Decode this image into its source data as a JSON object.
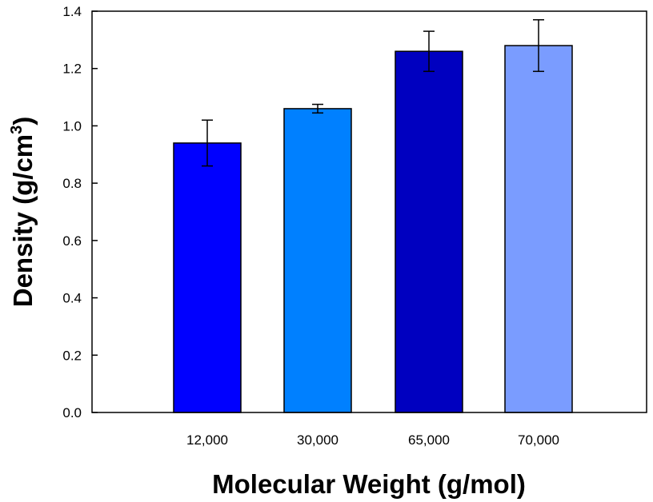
{
  "chart_data": {
    "type": "bar",
    "title": "",
    "xlabel": "Molecular Weight (g/mol)",
    "ylabel": {
      "text": "Density (g/cm",
      "superscript": "3",
      "suffix": ")"
    },
    "categories": [
      "12,000",
      "30,000",
      "65,000",
      "70,000"
    ],
    "values": [
      0.94,
      1.06,
      1.26,
      1.28
    ],
    "error_bars": [
      0.08,
      0.015,
      0.07,
      0.09
    ],
    "colors": [
      "#0000ff",
      "#0080ff",
      "#0000c0",
      "#7a9cff"
    ],
    "ylim": [
      0,
      1.4
    ],
    "yticks": [
      "0.0",
      "0.2",
      "0.4",
      "0.6",
      "0.8",
      "1.0",
      "1.2",
      "1.4"
    ],
    "grid": false,
    "legend": "none"
  }
}
